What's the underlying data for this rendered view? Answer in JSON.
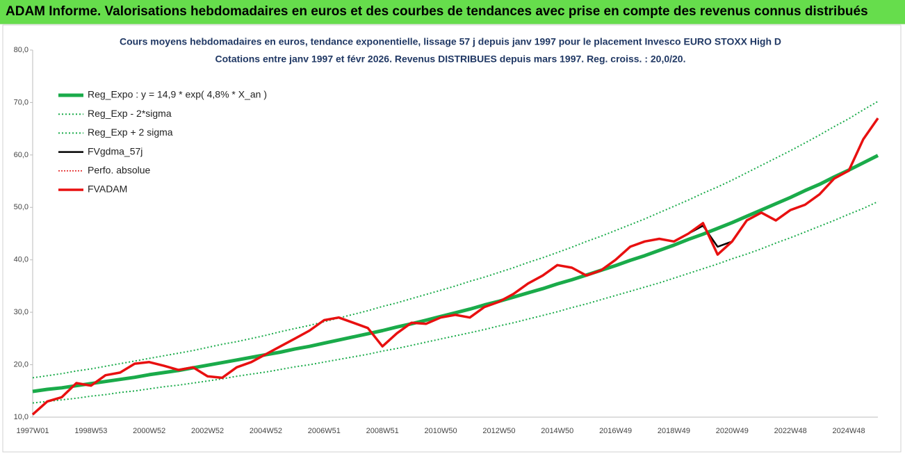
{
  "header": {
    "title": "ADAM Informe. Valorisations hebdomadaires en euros et des courbes de tendances avec prise en compte des revenus connus distribués"
  },
  "chart_data": {
    "type": "line",
    "subtitle": [
      "Cours moyens hebdomadaires en euros, tendance exponentielle, lissage 57 j depuis janv 1997 pour le placement Invesco EURO STOXX High D",
      "Cotations entre janv 1997 et févr 2026. Revenus DISTRIBUES depuis mars 1997. Reg. croiss. : 20,0/20."
    ],
    "categories": [
      "1997W01",
      null,
      null,
      null,
      "1998W53",
      null,
      null,
      null,
      "2000W52",
      null,
      null,
      null,
      "2002W52",
      null,
      null,
      null,
      "2004W52",
      null,
      null,
      null,
      "2006W51",
      null,
      null,
      null,
      "2008W51",
      null,
      null,
      null,
      "2010W50",
      null,
      null,
      null,
      "2012W50",
      null,
      null,
      null,
      "2014W50",
      null,
      null,
      null,
      "2016W49",
      null,
      null,
      null,
      "2018W49",
      null,
      null,
      null,
      "2020W49",
      null,
      null,
      null,
      "2022W48",
      null,
      null,
      null,
      "2024W48",
      null,
      null
    ],
    "ylim": [
      10,
      80
    ],
    "yticks": [
      {
        "value": 10,
        "label": "10,0"
      },
      {
        "value": 20,
        "label": "20,0"
      },
      {
        "value": 30,
        "label": "30,0"
      },
      {
        "value": 40,
        "label": "40,0"
      },
      {
        "value": 50,
        "label": "50,0"
      },
      {
        "value": 60,
        "label": "60,0"
      },
      {
        "value": 70,
        "label": "70,0"
      },
      {
        "value": 80,
        "label": "80,0"
      }
    ],
    "grid": false,
    "legend": "top-left",
    "series": [
      {
        "name": "Reg_Expo : y = 14,9 * exp( 4,8% *  X_an )",
        "color": "#1aab4a",
        "width": 5,
        "dash": "none",
        "values": [
          14.9,
          15.3,
          15.6,
          16.0,
          16.4,
          16.8,
          17.2,
          17.6,
          18.1,
          18.5,
          18.9,
          19.4,
          19.9,
          20.4,
          20.9,
          21.4,
          21.9,
          22.4,
          23.0,
          23.5,
          24.1,
          24.7,
          25.3,
          25.9,
          26.5,
          27.2,
          27.8,
          28.5,
          29.2,
          29.9,
          30.6,
          31.4,
          32.1,
          32.9,
          33.7,
          34.5,
          35.4,
          36.2,
          37.1,
          38.0,
          38.9,
          39.9,
          40.8,
          41.8,
          42.8,
          43.9,
          44.9,
          46.0,
          47.1,
          48.3,
          49.5,
          50.7,
          51.9,
          53.2,
          54.4,
          55.8,
          57.1,
          58.5,
          59.9
        ]
      },
      {
        "name": "Reg_Exp - 2*sigma",
        "color": "#1aab4a",
        "width": 2,
        "dash": "2 3",
        "values": [
          12.7,
          13.0,
          13.3,
          13.6,
          14.0,
          14.3,
          14.7,
          15.0,
          15.4,
          15.8,
          16.1,
          16.5,
          16.9,
          17.3,
          17.8,
          18.2,
          18.6,
          19.1,
          19.6,
          20.0,
          20.5,
          21.0,
          21.5,
          22.0,
          22.6,
          23.1,
          23.7,
          24.3,
          24.9,
          25.5,
          26.1,
          26.7,
          27.4,
          28.0,
          28.7,
          29.4,
          30.1,
          30.9,
          31.6,
          32.4,
          33.2,
          34.0,
          34.8,
          35.6,
          36.5,
          37.4,
          38.3,
          39.2,
          40.2,
          41.1,
          42.1,
          43.2,
          44.2,
          45.3,
          46.4,
          47.5,
          48.7,
          49.8,
          51.1
        ]
      },
      {
        "name": "Reg_Exp + 2 sigma",
        "color": "#1aab4a",
        "width": 2,
        "dash": "2 3",
        "values": [
          17.5,
          17.9,
          18.3,
          18.8,
          19.2,
          19.7,
          20.2,
          20.7,
          21.2,
          21.7,
          22.2,
          22.7,
          23.3,
          23.9,
          24.4,
          25.0,
          25.6,
          26.3,
          26.9,
          27.5,
          28.2,
          28.9,
          29.6,
          30.3,
          31.1,
          31.8,
          32.6,
          33.4,
          34.2,
          35.0,
          35.9,
          36.7,
          37.6,
          38.5,
          39.5,
          40.4,
          41.4,
          42.4,
          43.5,
          44.5,
          45.6,
          46.7,
          47.8,
          49.0,
          50.2,
          51.4,
          52.7,
          53.9,
          55.2,
          56.6,
          58.0,
          59.4,
          60.8,
          62.3,
          63.8,
          65.4,
          66.9,
          68.6,
          70.2
        ]
      },
      {
        "name": "FVgdma_57j",
        "color": "#000000",
        "width": 2.5,
        "dash": "none",
        "values": [
          10.5,
          13.0,
          13.8,
          16.5,
          16.0,
          18.0,
          18.5,
          20.2,
          20.5,
          19.8,
          19.0,
          19.5,
          17.8,
          17.5,
          19.5,
          20.5,
          22.0,
          23.5,
          25.0,
          26.5,
          28.5,
          29.0,
          28.0,
          27.0,
          23.5,
          26.0,
          28.0,
          27.8,
          29.0,
          29.5,
          29.0,
          31.0,
          32.0,
          33.5,
          35.5,
          37.0,
          39.0,
          38.5,
          37.0,
          38.0,
          40.0,
          42.5,
          43.5,
          44.0,
          43.5,
          45.0,
          46.5,
          42.5,
          43.5,
          47.5,
          49.0,
          47.5,
          49.5,
          50.5,
          52.5,
          55.5,
          57.0,
          63.0,
          67.0
        ]
      },
      {
        "name": "Perfo. absolue",
        "color": "#e01010",
        "width": 1.5,
        "dash": "2 2",
        "values": [
          10.5,
          13.0,
          13.8,
          16.5,
          16.0,
          18.0,
          18.5,
          20.2,
          20.5,
          19.8,
          19.0,
          19.5,
          17.8,
          17.5,
          19.5,
          20.5,
          22.0,
          23.5,
          25.0,
          26.5,
          28.5,
          29.0,
          28.0,
          27.0,
          23.5,
          26.0,
          28.0,
          27.8,
          29.0,
          29.5,
          29.0,
          31.0,
          32.0,
          33.5,
          35.5,
          37.0,
          39.0,
          38.5,
          37.0,
          38.0,
          40.0,
          42.5,
          43.5,
          44.0,
          43.5,
          45.0,
          47.0,
          41.0,
          43.5,
          47.5,
          49.0,
          47.5,
          49.5,
          50.5,
          52.5,
          55.5,
          57.0,
          63.0,
          67.0
        ]
      },
      {
        "name": "FVADAM",
        "color": "#e81010",
        "width": 3.5,
        "dash": "none",
        "values": [
          10.5,
          13.0,
          13.8,
          16.5,
          16.0,
          18.0,
          18.5,
          20.2,
          20.5,
          19.8,
          19.0,
          19.5,
          17.8,
          17.5,
          19.5,
          20.5,
          22.0,
          23.5,
          25.0,
          26.5,
          28.5,
          29.0,
          28.0,
          27.0,
          23.5,
          26.0,
          28.0,
          27.8,
          29.0,
          29.5,
          29.0,
          31.0,
          32.0,
          33.5,
          35.5,
          37.0,
          39.0,
          38.5,
          37.0,
          38.0,
          40.0,
          42.5,
          43.5,
          44.0,
          43.5,
          45.0,
          47.0,
          41.0,
          43.5,
          47.5,
          49.0,
          47.5,
          49.5,
          50.5,
          52.5,
          55.5,
          57.0,
          63.0,
          67.0
        ]
      }
    ]
  }
}
